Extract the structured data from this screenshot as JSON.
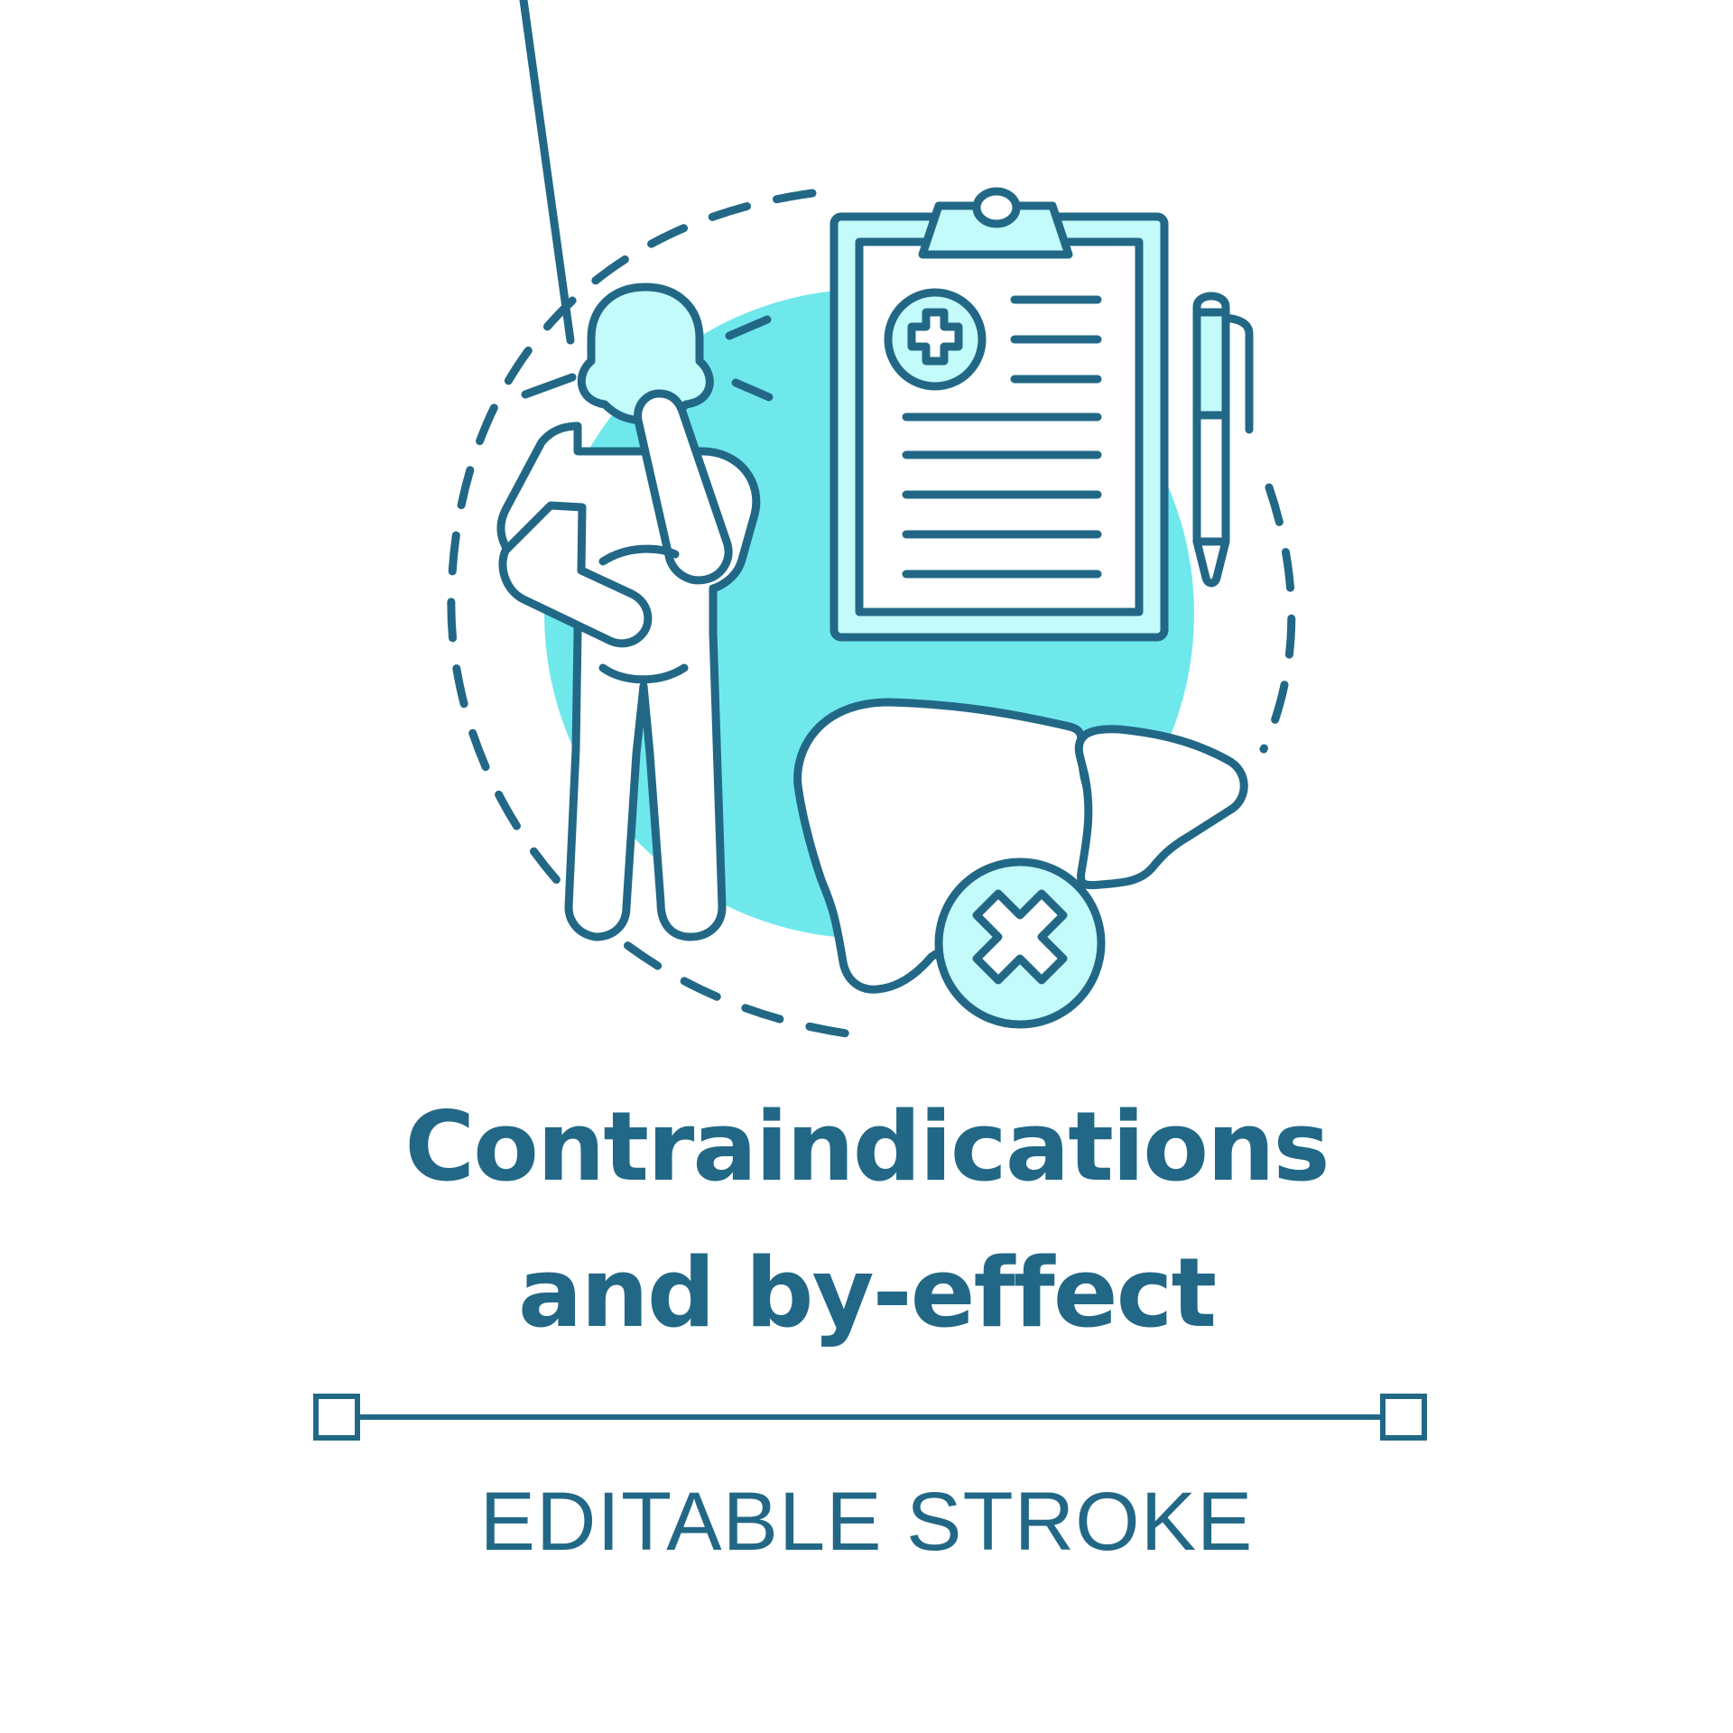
{
  "title": {
    "line1": "Contraindications",
    "line2": "and by-effect"
  },
  "subtitle": "EDITABLE STROKE",
  "colors": {
    "stroke": "#226886",
    "accent_circle": "#6fe8ec",
    "light_fill": "#c3fafa",
    "background": "#ffffff"
  },
  "icons": [
    "person-headache-icon",
    "clipboard-icon",
    "medical-cross-icon",
    "pen-icon",
    "liver-icon",
    "x-mark-icon"
  ]
}
